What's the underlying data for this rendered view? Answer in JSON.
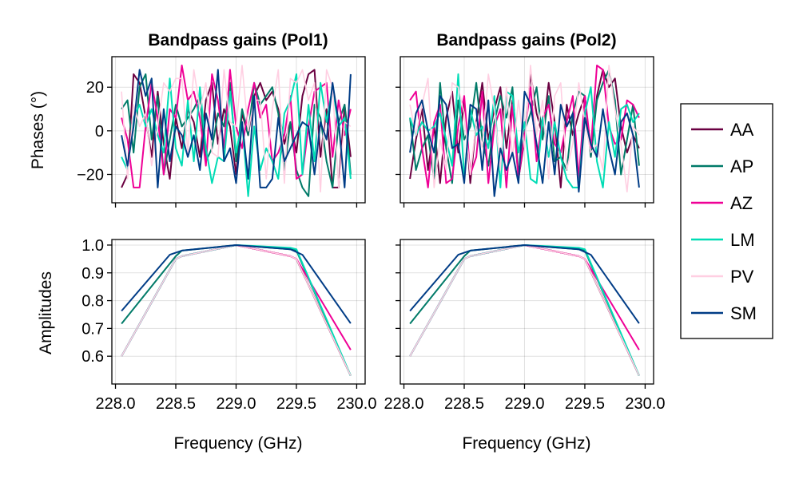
{
  "legend": {
    "placement": "right",
    "entries": [
      {
        "label": "AA",
        "color": "#6a0041"
      },
      {
        "label": "AP",
        "color": "#007a68"
      },
      {
        "label": "AZ",
        "color": "#ef0096"
      },
      {
        "label": "LM",
        "color": "#00dcb5"
      },
      {
        "label": "PV",
        "color": "#ffcfe2"
      },
      {
        "label": "SM",
        "color": "#003c86"
      }
    ]
  },
  "chart_data": [
    {
      "type": "line",
      "panel": "phases-pol1",
      "title": "Bandpass gains (Pol1)",
      "ylabel": "Phases (°)",
      "xlabel": "",
      "xlim": [
        227.97,
        230.07
      ],
      "ylim": [
        -33,
        34
      ],
      "xticks": [
        228.0,
        228.5,
        229.0,
        229.5,
        230.0
      ],
      "yticks": [
        20,
        0,
        -20
      ],
      "ytick_labels": [
        "20",
        "0",
        "−20"
      ],
      "grid": true,
      "x": [
        228.05,
        228.1,
        228.15,
        228.2,
        228.25,
        228.3,
        228.35,
        228.4,
        228.45,
        228.5,
        228.55,
        228.6,
        228.65,
        228.7,
        228.75,
        228.8,
        228.85,
        228.9,
        228.95,
        229.0,
        229.05,
        229.1,
        229.15,
        229.2,
        229.25,
        229.3,
        229.35,
        229.4,
        229.45,
        229.5,
        229.55,
        229.6,
        229.65,
        229.7,
        229.75,
        229.8,
        229.85,
        229.9,
        229.95
      ],
      "series": [
        {
          "name": "AA",
          "values": [
            -26,
            -20,
            26,
            22,
            6,
            -12,
            18,
            -6,
            -22,
            6,
            -8,
            10,
            4,
            -12,
            14,
            22,
            -6,
            10,
            2,
            -20,
            8,
            -2,
            16,
            22,
            14,
            18,
            10,
            -6,
            4,
            -10,
            16,
            26,
            28,
            -12,
            10,
            -26,
            -26,
            12,
            -12
          ]
        },
        {
          "name": "AP",
          "values": [
            10,
            14,
            -10,
            20,
            26,
            -4,
            16,
            -20,
            -4,
            12,
            2,
            6,
            10,
            16,
            -14,
            -8,
            8,
            2,
            22,
            -14,
            10,
            -2,
            22,
            12,
            16,
            20,
            8,
            -18,
            4,
            -18,
            -26,
            -30,
            12,
            6,
            -14,
            -26,
            4,
            12,
            -20
          ]
        },
        {
          "name": "AZ",
          "values": [
            6,
            -4,
            -26,
            -26,
            2,
            22,
            6,
            -20,
            10,
            6,
            30,
            14,
            18,
            6,
            -16,
            26,
            14,
            -8,
            28,
            2,
            -8,
            10,
            22,
            6,
            12,
            -14,
            -10,
            -2,
            16,
            -22,
            -20,
            2,
            18,
            20,
            22,
            -12,
            14,
            -2,
            10
          ]
        },
        {
          "name": "LM",
          "values": [
            -12,
            -18,
            6,
            12,
            2,
            10,
            -2,
            -10,
            24,
            -8,
            -16,
            14,
            -14,
            20,
            -8,
            -24,
            -12,
            -14,
            18,
            -10,
            4,
            -30,
            2,
            -18,
            -8,
            -14,
            -22,
            8,
            14,
            26,
            -20,
            12,
            -14,
            22,
            4,
            20,
            2,
            6,
            -22
          ]
        },
        {
          "name": "PV",
          "values": [
            18,
            -22,
            12,
            2,
            8,
            -16,
            2,
            22,
            18,
            24,
            24,
            -10,
            28,
            10,
            22,
            -10,
            -12,
            28,
            4,
            2,
            30,
            0,
            14,
            14,
            -22,
            10,
            28,
            -24,
            24,
            22,
            28,
            14,
            22,
            -28,
            28,
            20,
            -26,
            4,
            2
          ]
        },
        {
          "name": "SM",
          "values": [
            -2,
            -16,
            2,
            28,
            16,
            24,
            -26,
            10,
            -14,
            2,
            -2,
            -12,
            -2,
            -18,
            8,
            -4,
            28,
            -14,
            -8,
            -24,
            4,
            -22,
            16,
            -26,
            -26,
            -22,
            6,
            -14,
            -8,
            -2,
            4,
            2,
            -20,
            4,
            -4,
            22,
            4,
            -26,
            26
          ]
        }
      ]
    },
    {
      "type": "line",
      "panel": "phases-pol2",
      "title": "Bandpass gains (Pol2)",
      "ylabel": "",
      "xlabel": "",
      "xlim": [
        227.97,
        230.07
      ],
      "ylim": [
        -33,
        34
      ],
      "xticks": [
        228.0,
        228.5,
        229.0,
        229.5,
        230.0
      ],
      "yticks": [
        20,
        0,
        -20
      ],
      "grid": true,
      "x": [
        228.05,
        228.1,
        228.15,
        228.2,
        228.25,
        228.3,
        228.35,
        228.4,
        228.45,
        228.5,
        228.55,
        228.6,
        228.65,
        228.7,
        228.75,
        228.8,
        228.85,
        228.9,
        228.95,
        229.0,
        229.05,
        229.1,
        229.15,
        229.2,
        229.25,
        229.3,
        229.35,
        229.4,
        229.45,
        229.5,
        229.55,
        229.6,
        229.65,
        229.7,
        229.75,
        229.8,
        229.85,
        229.9,
        229.95
      ],
      "series": [
        {
          "name": "AA",
          "values": [
            -22,
            -4,
            10,
            -18,
            2,
            -24,
            6,
            18,
            -10,
            14,
            -24,
            4,
            22,
            -4,
            10,
            20,
            -8,
            14,
            -22,
            -4,
            26,
            8,
            -2,
            22,
            4,
            -26,
            12,
            -2,
            8,
            16,
            -12,
            16,
            28,
            20,
            24,
            2,
            -10,
            -2,
            -8
          ]
        },
        {
          "name": "AP",
          "values": [
            6,
            -18,
            -8,
            -2,
            -22,
            22,
            -8,
            -24,
            14,
            -4,
            2,
            22,
            -4,
            -16,
            4,
            16,
            6,
            20,
            -20,
            0,
            8,
            20,
            -4,
            16,
            -14,
            -12,
            -18,
            8,
            18,
            16,
            -12,
            14,
            22,
            28,
            14,
            -20,
            -4,
            12,
            -16
          ]
        },
        {
          "name": "AZ",
          "values": [
            14,
            18,
            -8,
            -26,
            4,
            12,
            -24,
            -22,
            2,
            16,
            -20,
            -12,
            18,
            -24,
            2,
            10,
            -26,
            12,
            -22,
            -2,
            20,
            -14,
            6,
            12,
            -6,
            -10,
            4,
            16,
            -22,
            16,
            -8,
            30,
            28,
            2,
            -6,
            -4,
            14,
            12,
            6
          ]
        },
        {
          "name": "LM",
          "values": [
            6,
            -2,
            4,
            0,
            2,
            8,
            -4,
            -16,
            26,
            -22,
            10,
            -2,
            2,
            -8,
            16,
            -26,
            18,
            16,
            -10,
            4,
            -22,
            -24,
            6,
            -12,
            4,
            -12,
            -22,
            -26,
            -26,
            8,
            20,
            -14,
            -26,
            4,
            -12,
            10,
            12,
            4,
            8
          ]
        },
        {
          "name": "PV",
          "values": [
            12,
            -2,
            12,
            24,
            -26,
            -4,
            -18,
            22,
            20,
            8,
            -20,
            4,
            -8,
            26,
            10,
            -18,
            20,
            -12,
            14,
            -8,
            30,
            -2,
            14,
            -22,
            16,
            22,
            -18,
            -6,
            22,
            4,
            -10,
            -6,
            -18,
            30,
            10,
            -6,
            -28,
            2,
            -2
          ]
        },
        {
          "name": "SM",
          "values": [
            -10,
            8,
            14,
            0,
            -10,
            16,
            12,
            -8,
            -6,
            -24,
            12,
            10,
            -18,
            14,
            -30,
            -8,
            -18,
            -10,
            -24,
            18,
            12,
            -6,
            -24,
            4,
            -20,
            12,
            2,
            8,
            -28,
            6,
            -6,
            -12,
            10,
            -8,
            -20,
            4,
            8,
            -2,
            -26
          ]
        }
      ]
    },
    {
      "type": "line",
      "panel": "amplitudes-pol1",
      "title": "",
      "ylabel": "Amplitudes",
      "xlabel": "Frequency (GHz)",
      "xlim": [
        227.97,
        230.07
      ],
      "ylim": [
        0.5,
        1.02
      ],
      "xticks": [
        228.0,
        228.5,
        229.0,
        229.5,
        230.0
      ],
      "xtick_labels": [
        "228.0",
        "228.5",
        "229.0",
        "229.5",
        "230.0"
      ],
      "yticks": [
        1.0,
        0.9,
        0.8,
        0.7,
        0.6
      ],
      "ytick_labels": [
        "1.0",
        "0.9",
        "0.8",
        "0.7",
        "0.6"
      ],
      "grid": true,
      "series": [
        {
          "name": "AA",
          "x": [
            228.05,
            228.5,
            228.55,
            229.0,
            229.45,
            229.5,
            229.95
          ],
          "values": [
            0.6,
            0.95,
            0.96,
            1.0,
            0.96,
            0.95,
            0.53
          ]
        },
        {
          "name": "AP",
          "x": [
            228.05,
            228.5,
            228.55,
            229.0,
            229.45,
            229.5,
            229.95
          ],
          "values": [
            0.717,
            0.96,
            0.98,
            1.0,
            0.985,
            0.98,
            0.53
          ]
        },
        {
          "name": "AZ",
          "x": [
            228.05,
            228.5,
            228.55,
            229.0,
            229.45,
            229.5,
            229.95
          ],
          "values": [
            0.6,
            0.95,
            0.96,
            1.0,
            0.96,
            0.95,
            0.623
          ]
        },
        {
          "name": "LM",
          "x": [
            228.05,
            228.5,
            228.55,
            229.0,
            229.45,
            229.5,
            229.95
          ],
          "values": [
            0.6,
            0.95,
            0.96,
            1.0,
            0.99,
            0.985,
            0.53
          ]
        },
        {
          "name": "PV",
          "x": [
            228.05,
            228.5,
            228.55,
            229.0,
            229.45,
            229.5,
            229.95
          ],
          "values": [
            0.6,
            0.95,
            0.96,
            1.0,
            0.96,
            0.95,
            0.53
          ]
        },
        {
          "name": "SM",
          "x": [
            228.05,
            228.45,
            228.55,
            229.0,
            229.45,
            229.55,
            229.95
          ],
          "values": [
            0.763,
            0.965,
            0.98,
            1.0,
            0.985,
            0.965,
            0.718
          ]
        }
      ]
    },
    {
      "type": "line",
      "panel": "amplitudes-pol2",
      "title": "",
      "ylabel": "",
      "xlabel": "Frequency (GHz)",
      "xlim": [
        227.97,
        230.07
      ],
      "ylim": [
        0.5,
        1.02
      ],
      "xticks": [
        228.0,
        228.5,
        229.0,
        229.5,
        230.0
      ],
      "xtick_labels": [
        "228.0",
        "228.5",
        "229.0",
        "229.5",
        "230.0"
      ],
      "yticks": [
        1.0,
        0.9,
        0.8,
        0.7,
        0.6
      ],
      "grid": true,
      "series": [
        {
          "name": "AA",
          "x": [
            228.05,
            228.5,
            228.55,
            229.0,
            229.45,
            229.5,
            229.95
          ],
          "values": [
            0.6,
            0.95,
            0.96,
            1.0,
            0.96,
            0.95,
            0.53
          ]
        },
        {
          "name": "AP",
          "x": [
            228.05,
            228.5,
            228.55,
            229.0,
            229.45,
            229.5,
            229.95
          ],
          "values": [
            0.717,
            0.96,
            0.98,
            1.0,
            0.985,
            0.98,
            0.53
          ]
        },
        {
          "name": "AZ",
          "x": [
            228.05,
            228.5,
            228.55,
            229.0,
            229.45,
            229.5,
            229.95
          ],
          "values": [
            0.6,
            0.95,
            0.96,
            1.0,
            0.96,
            0.95,
            0.623
          ]
        },
        {
          "name": "LM",
          "x": [
            228.05,
            228.5,
            228.55,
            229.0,
            229.45,
            229.5,
            229.95
          ],
          "values": [
            0.6,
            0.95,
            0.96,
            1.0,
            0.99,
            0.985,
            0.53
          ]
        },
        {
          "name": "PV",
          "x": [
            228.05,
            228.5,
            228.55,
            229.0,
            229.45,
            229.5,
            229.95
          ],
          "values": [
            0.6,
            0.95,
            0.96,
            1.0,
            0.96,
            0.95,
            0.53
          ]
        },
        {
          "name": "SM",
          "x": [
            228.05,
            228.45,
            228.55,
            229.0,
            229.45,
            229.55,
            229.95
          ],
          "values": [
            0.763,
            0.965,
            0.98,
            1.0,
            0.985,
            0.965,
            0.718
          ]
        }
      ]
    }
  ]
}
